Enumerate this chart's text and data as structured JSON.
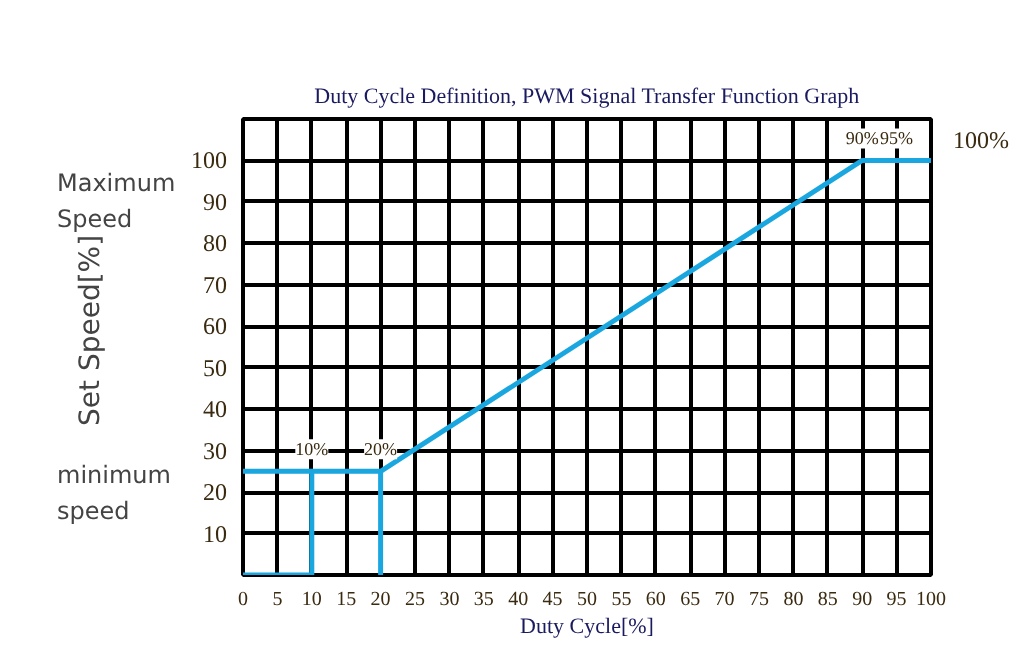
{
  "chart_data": {
    "type": "line",
    "title": "Duty Cycle Definition, PWM Signal Transfer Function Graph",
    "xlabel": "Duty Cycle[%]",
    "ylabel": "Set Speed[%]",
    "series": [
      {
        "color": "#1aa7e0",
        "x": [
          0,
          20,
          90,
          100
        ],
        "values": [
          25,
          25,
          100,
          100
        ]
      },
      {
        "color": "#1aa7e0",
        "x": [
          0,
          10,
          10
        ],
        "values": [
          0,
          0,
          25
        ]
      },
      {
        "color": "#1aa7e0",
        "x": [
          20,
          20
        ],
        "values": [
          0,
          25
        ]
      }
    ],
    "xlim": [
      0,
      100
    ],
    "ylim": [
      0,
      110
    ],
    "xticks": [
      0,
      5,
      10,
      15,
      20,
      25,
      30,
      35,
      40,
      45,
      50,
      55,
      60,
      65,
      70,
      75,
      80,
      85,
      90,
      95,
      100
    ],
    "yticks": [
      {
        "value": 0,
        "label": null
      },
      10,
      20,
      30,
      40,
      50,
      60,
      70,
      80,
      90,
      100
    ],
    "grid": true,
    "marker": "none",
    "line_style": "solid",
    "annotations": [
      {
        "text": "10%",
        "x": 10,
        "y": 25
      },
      {
        "text": "20%",
        "x": 20,
        "y": 25
      },
      {
        "text": "90%",
        "x": 90,
        "y": 100
      },
      {
        "text": "95%",
        "x": 95,
        "y": 100
      },
      {
        "text": "100%",
        "x": 100,
        "y": 100
      },
      "Maximum Speed",
      "minimum speed"
    ]
  }
}
